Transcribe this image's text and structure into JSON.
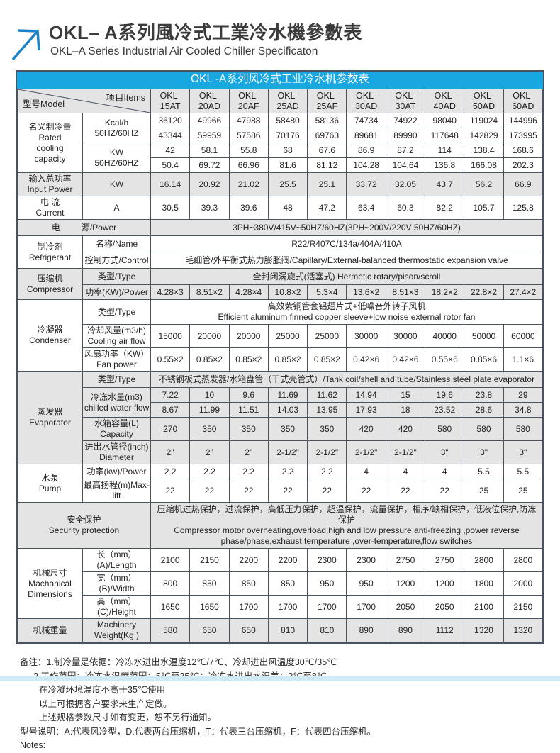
{
  "header": {
    "title_zh": "OKL– A系列風冷式工業冷水機參數表",
    "title_en": "OKL–A Series Industrial Air Cooled Chiller Specificaton"
  },
  "colors": {
    "caption_blue": "#19a7e1",
    "band_gray": "#e4e4e4",
    "border_dark": "#4a5260",
    "arrow_blue": "#1d82c8",
    "footer_strip_blue": "#cfe9f6"
  },
  "table": {
    "caption": "OKL -A系列风冷式工业冷水机参数表",
    "corner": {
      "model": "型号Model",
      "items": "项目Items"
    },
    "models": [
      "OKL-\n15AT",
      "OKL-\n20AD",
      "OKL-\n20AF",
      "OKL-\n25AD",
      "OKL-\n25AF",
      "OKL-\n30AD",
      "OKL-\n30AT",
      "OKL-\n40AD",
      "OKL-\n50AD",
      "OKL-\n60AD"
    ],
    "sections": [
      {
        "id": "rated-cooling-capacity",
        "shaded": false,
        "label": "名义制冷量\nRated\ncooling\ncapacity",
        "rows": [
          {
            "item": "Kcal/h\n50HZ/60HZ",
            "itemSpan": 2,
            "values": [
              "36120",
              "49966",
              "47988",
              "58480",
              "58136",
              "74734",
              "74922",
              "98040",
              "119024",
              "144996"
            ]
          },
          {
            "values": [
              "43344",
              "59959",
              "57586",
              "70176",
              "69763",
              "89681",
              "89990",
              "117648",
              "142829",
              "173995"
            ]
          },
          {
            "item": "KW\n50HZ/60HZ",
            "itemSpan": 2,
            "values": [
              "42",
              "58.1",
              "55.8",
              "68",
              "67.6",
              "86.9",
              "87.2",
              "114",
              "138.4",
              "168.6"
            ]
          },
          {
            "values": [
              "50.4",
              "69.72",
              "66.96",
              "81.6",
              "81.12",
              "104.28",
              "104.64",
              "136.8",
              "166.08",
              "202.3"
            ]
          }
        ]
      },
      {
        "id": "input-power",
        "shaded": true,
        "label": "输入总功率\nInput Power",
        "rows": [
          {
            "item": "KW",
            "values": [
              "16.14",
              "20.92",
              "21.02",
              "25.5",
              "25.1",
              "33.72",
              "32.05",
              "43.7",
              "56.2",
              "66.9"
            ]
          }
        ]
      },
      {
        "id": "current",
        "shaded": false,
        "label": "电 流\nCurrent",
        "rows": [
          {
            "item": "A",
            "values": [
              "30.5",
              "39.3",
              "39.6",
              "48",
              "47.2",
              "63.4",
              "60.3",
              "82.2",
              "105.7",
              "125.8"
            ]
          }
        ]
      },
      {
        "id": "power-source",
        "shaded": true,
        "merged": "split",
        "labelParts": [
          "电",
          "源/Power"
        ],
        "rows": [
          {
            "span": "3PH~380V/415V~50HZ/60HZ(3PH~200V/220V  50HZ/60HZ)"
          }
        ]
      },
      {
        "id": "refrigerant",
        "shaded": false,
        "label": "制冷剂\nRefrigerant",
        "rows": [
          {
            "item": "名称/Name",
            "span": "R22/R407C/134a/404A/410A"
          },
          {
            "item": "控制方式/Control",
            "span": "毛细管/外平衡式热力膨胀阀/Capillary/External-balanced thermostatic expansion valve"
          }
        ]
      },
      {
        "id": "compressor",
        "shaded": true,
        "label": "压缩机\nCompressor",
        "rows": [
          {
            "item": "类型/Type",
            "span": "全封闭涡旋式(活塞式)        Hermetic rotary/pison/scroll"
          },
          {
            "item": "功率(KW)/Power",
            "values": [
              "4.28×3",
              "8.51×2",
              "4.28×4",
              "10.8×2",
              "5.3×4",
              "13.6×2",
              "8.51×3",
              "18.2×2",
              "22.8×2",
              "27.4×2"
            ]
          }
        ]
      },
      {
        "id": "condenser",
        "shaded": false,
        "label": "冷凝器\nCondenser",
        "rows": [
          {
            "item": "类型/Type",
            "span": "高效紫铜管套铝翅片式+低噪音外转子风机\nEfficient aluminum finned copper sleeve+low noise external rotor fan"
          },
          {
            "item": "冷却风量(m3/h)\nCooling air flow",
            "values": [
              "15000",
              "20000",
              "20000",
              "25000",
              "25000",
              "30000",
              "30000",
              "40000",
              "50000",
              "60000"
            ]
          },
          {
            "item": "风扇功率（KW）\nFan power",
            "values": [
              "0.55×2",
              "0.85×2",
              "0.85×2",
              "0.85×2",
              "0.85×2",
              "0.42×6",
              "0.42×6",
              "0.55×6",
              "0.85×6",
              "1.1×6"
            ]
          }
        ]
      },
      {
        "id": "evaporator",
        "shaded": true,
        "label": "蒸发器\nEvaporator",
        "rows": [
          {
            "item": "类型/Type",
            "span": "不锈钢板式蒸发器/水箱盘管（干式壳管式）/Tank coil/shell and tube/Stainless steel plate evaporator"
          },
          {
            "item": "冷冻水量(m3)\nchilled water flow",
            "itemSpan": 2,
            "values": [
              "7.22",
              "10",
              "9.6",
              "11.69",
              "11.62",
              "14.94",
              "15",
              "19.6",
              "23.8",
              "29"
            ]
          },
          {
            "values": [
              "8.67",
              "11.99",
              "11.51",
              "14.03",
              "13.95",
              "17.93",
              "18",
              "23.52",
              "28.6",
              "34.8"
            ]
          },
          {
            "item": "水箱容量(L)\nCapacity",
            "values": [
              "270",
              "350",
              "350",
              "350",
              "350",
              "420",
              "420",
              "580",
              "580",
              "580"
            ]
          },
          {
            "item": "进出水管径(inch)\nDiameter",
            "values": [
              "2\"",
              "2\"",
              "2\"",
              "2-1/2\"",
              "2-1/2\"",
              "2-1/2\"",
              "2-1/2\"",
              "3\"",
              "3\"",
              "3\""
            ]
          }
        ]
      },
      {
        "id": "pump",
        "shaded": false,
        "label": "水泵\nPump",
        "rows": [
          {
            "item": "功率(kw)/Power",
            "values": [
              "2.2",
              "2.2",
              "2.2",
              "2.2",
              "2.2",
              "4",
              "4",
              "4",
              "5.5",
              "5.5"
            ]
          },
          {
            "item": "最高扬程(m)Max-lift",
            "values": [
              "22",
              "22",
              "22",
              "22",
              "22",
              "22",
              "22",
              "22",
              "25",
              "25"
            ]
          }
        ]
      },
      {
        "id": "security-protection",
        "shaded": true,
        "merged": "center",
        "label": "安全保护\nSecurity protection",
        "rows": [
          {
            "span": "压缩机过热保护，过流保护，高低压力保护，超温保护，流量保护，相序/缺相保护，低液位保护,防冻保护\nCompressor motor overheating,overload,high and low pressure,anti-freezing ,power reverse phase/phase,exhaust temperature ,over-temperature,flow switches"
          }
        ]
      },
      {
        "id": "mechanical-dimensions",
        "shaded": false,
        "label": "机械尺寸\nMachanical\nDimensions",
        "rows": [
          {
            "item": "长（mm）(A)/Length",
            "values": [
              "2100",
              "2150",
              "2200",
              "2200",
              "2300",
              "2300",
              "2750",
              "2750",
              "2800",
              "2800"
            ]
          },
          {
            "item": "宽（mm）(B)/Width",
            "values": [
              "800",
              "850",
              "850",
              "850",
              "950",
              "950",
              "1200",
              "1200",
              "1800",
              "2000"
            ]
          },
          {
            "item": "高（mm）(C)/Height",
            "values": [
              "1650",
              "1650",
              "1700",
              "1700",
              "1700",
              "1700",
              "2050",
              "2050",
              "2100",
              "2150"
            ]
          }
        ]
      },
      {
        "id": "machinery-weight",
        "shaded": true,
        "label": "机械重量",
        "rows": [
          {
            "item": "Machinery\nWeight(Kg )",
            "values": [
              "580",
              "650",
              "650",
              "810",
              "810",
              "890",
              "890",
              "1112",
              "1320",
              "1320"
            ]
          }
        ]
      }
    ]
  },
  "notes": {
    "lines": [
      {
        "text": "备注：1.制冷量是依据：冷冻水进出水温度12℃/7℃、冷却进出风温度30℃/35℃",
        "indent": 0
      },
      {
        "text": "2.工作范围：冷冻水温度范围：5℃至35℃；冷冻水进出水温差：3℃至8℃。",
        "indent": 1
      },
      {
        "text": "在冷凝环境温度不高于35℃使用",
        "indent": 2
      },
      {
        "text": "以上可根据客户要求来生产定做。",
        "indent": 2
      },
      {
        "text": "上述规格参数尺寸如有变更，恕不另行通知。",
        "indent": 2
      },
      {
        "text": "型号说明：A:代表风冷型，D:代表两台压缩机，T：代表三台压缩机，F：代表四台压缩机。",
        "indent": 0
      },
      {
        "text": "Notes:",
        "indent": 0
      }
    ]
  }
}
